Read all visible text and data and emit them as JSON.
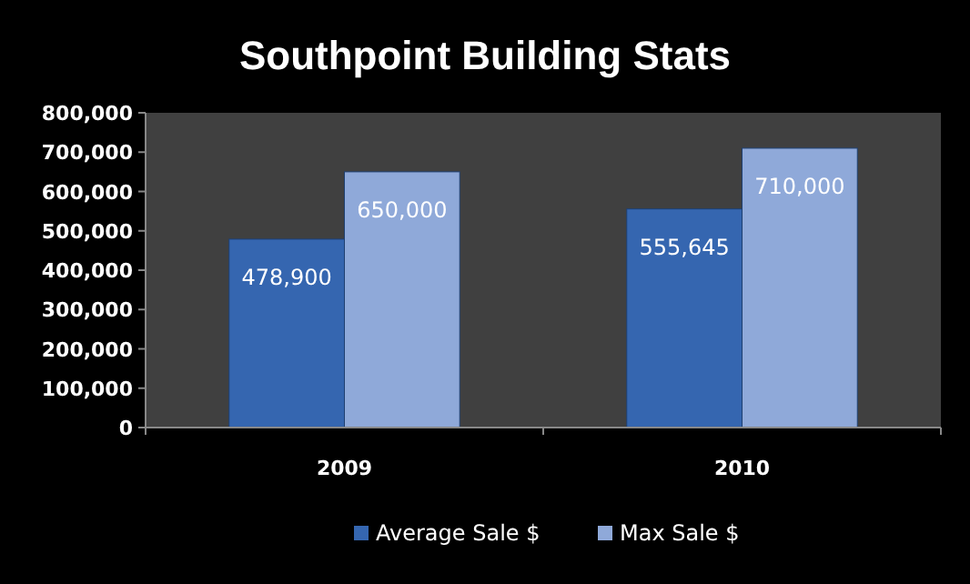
{
  "chart_data": {
    "type": "bar",
    "title": "Southpoint Building Stats",
    "categories": [
      "2009",
      "2010"
    ],
    "series": [
      {
        "name": "Average Sale $",
        "color": "#3566b0",
        "values": [
          478900,
          555645
        ],
        "value_labels": [
          "478,900",
          "555,645"
        ]
      },
      {
        "name": "Max Sale $",
        "color": "#8fa9d9",
        "values": [
          650000,
          710000
        ],
        "value_labels": [
          "650,000",
          "710,000"
        ]
      }
    ],
    "ylim": [
      0,
      800000
    ],
    "yticks": [
      {
        "value": 0,
        "label": "0"
      },
      {
        "value": 100000,
        "label": "100,000"
      },
      {
        "value": 200000,
        "label": "200,000"
      },
      {
        "value": 300000,
        "label": "300,000"
      },
      {
        "value": 400000,
        "label": "400,000"
      },
      {
        "value": 500000,
        "label": "500,000"
      },
      {
        "value": 600000,
        "label": "600,000"
      },
      {
        "value": 700000,
        "label": "700,000"
      },
      {
        "value": 800000,
        "label": "800,000"
      }
    ],
    "legend": "bottom",
    "grid": false
  }
}
